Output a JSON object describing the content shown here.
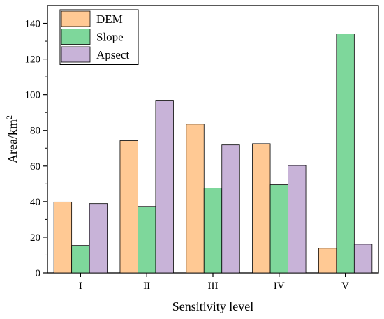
{
  "chart_data": {
    "type": "bar",
    "categories": [
      "I",
      "II",
      "III",
      "IV",
      "V"
    ],
    "series": [
      {
        "name": "DEM",
        "values": [
          39.8,
          74.2,
          83.5,
          72.5,
          13.8
        ],
        "color": "#FFC994"
      },
      {
        "name": "Slope",
        "values": [
          15.4,
          37.3,
          47.6,
          49.5,
          134.1
        ],
        "color": "#7ED79B"
      },
      {
        "name": "Apsect",
        "values": [
          38.9,
          96.9,
          71.8,
          60.3,
          16.1
        ],
        "color": "#C8B3D8"
      }
    ],
    "xlabel": "Sensitivity level",
    "ylabel": "Area/km²",
    "ylabel_main": "Area/km",
    "ylabel_sup": "2",
    "ylim": [
      0,
      150
    ],
    "yticks": [
      0,
      20,
      40,
      60,
      80,
      100,
      120,
      140
    ],
    "legend_position": "top-left",
    "grid": false
  }
}
